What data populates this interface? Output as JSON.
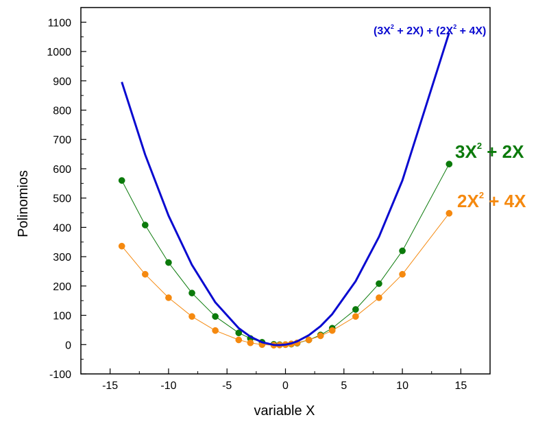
{
  "chart_data": {
    "type": "line",
    "xlabel": "variable X",
    "ylabel": "Polinomios",
    "xlim": [
      -17.5,
      17.5
    ],
    "ylim": [
      -100,
      1150
    ],
    "x_ticks": [
      -15,
      -10,
      -5,
      0,
      5,
      10,
      15
    ],
    "y_ticks": [
      -100,
      0,
      100,
      200,
      300,
      400,
      500,
      600,
      700,
      800,
      900,
      1000,
      1100
    ],
    "grid": false,
    "series": [
      {
        "name": "3X² + 2X",
        "color": "#0b7a0b",
        "markers": true,
        "x": [
          -14,
          -12,
          -10,
          -8,
          -6,
          -4,
          -3,
          -2,
          -1,
          -0.5,
          0,
          0.5,
          1,
          2,
          3,
          4,
          6,
          8,
          10,
          14
        ],
        "y": [
          560,
          408,
          280,
          176,
          96,
          40,
          21,
          8,
          1,
          -0.25,
          0,
          1.75,
          5,
          16,
          33,
          56,
          120,
          208,
          320,
          616
        ]
      },
      {
        "name": "2X² + 4X",
        "color": "#f5890f",
        "markers": true,
        "x": [
          -14,
          -12,
          -10,
          -8,
          -6,
          -4,
          -3,
          -2,
          -1,
          -0.5,
          0,
          0.5,
          1,
          2,
          3,
          4,
          6,
          8,
          10,
          14
        ],
        "y": [
          336,
          240,
          160,
          96,
          48,
          16,
          6,
          0,
          -2,
          -1.5,
          0,
          2.5,
          6,
          16,
          30,
          48,
          96,
          160,
          240,
          448
        ]
      },
      {
        "name": "(3X² + 2X) + (2X² + 4X)",
        "color": "#0a0ad0",
        "markers": false,
        "x": [
          -14,
          -12,
          -10,
          -8,
          -6,
          -4,
          -3,
          -2,
          -1,
          -0.5,
          0,
          0.5,
          1,
          2,
          3,
          4,
          6,
          8,
          10,
          14
        ],
        "y": [
          896,
          648,
          440,
          272,
          144,
          56,
          27,
          8,
          -1,
          -1.75,
          0,
          4.25,
          11,
          32,
          63,
          104,
          216,
          368,
          560,
          1064
        ]
      }
    ],
    "annotations": [
      {
        "text": "(3X² + 2X) + (2X² + 4X)",
        "color": "#0a0ad0"
      },
      {
        "text": "3X² + 2X",
        "color": "#0b7a0b"
      },
      {
        "text": "2X² + 4X",
        "color": "#f5890f"
      }
    ]
  }
}
